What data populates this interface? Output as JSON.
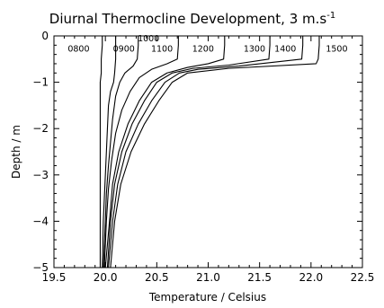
{
  "chart_data": {
    "type": "line",
    "title": "Diurnal Thermocline Development, 3 m.s",
    "title_superscript": "-1",
    "xlabel": "Temperature / Celsius",
    "ylabel": "Depth / m",
    "xlim": [
      19.5,
      22.5
    ],
    "ylim": [
      -5,
      0
    ],
    "xticks": [
      19.5,
      20.0,
      20.5,
      21.0,
      21.5,
      22.0,
      22.5
    ],
    "xtick_labels": [
      "19.5",
      "20.0",
      "20.5",
      "21.0",
      "21.5",
      "22.0",
      "22.5"
    ],
    "yticks": [
      0,
      -1,
      -2,
      -3,
      -4,
      -5
    ],
    "ytick_labels": [
      "0",
      "−1",
      "−2",
      "−3",
      "−4",
      "−5"
    ],
    "grid": false,
    "line_color": "#000000",
    "series": [
      {
        "name": "0800",
        "x": [
          19.97,
          19.97,
          19.96,
          19.96,
          19.95,
          19.95,
          19.95,
          19.95,
          19.95,
          19.95,
          19.95,
          19.95,
          19.95
        ],
        "y": [
          0,
          -0.2,
          -0.5,
          -0.8,
          -1.0,
          -1.2,
          -1.5,
          -2.0,
          -2.5,
          -3.0,
          -3.5,
          -4.0,
          -5.0
        ]
      },
      {
        "name": "0900",
        "x": [
          20.1,
          20.1,
          20.1,
          20.09,
          20.08,
          20.05,
          20.03,
          20.02,
          20.01,
          20.0,
          19.99,
          19.98,
          19.97
        ],
        "y": [
          0,
          -0.2,
          -0.5,
          -0.8,
          -1.0,
          -1.2,
          -1.5,
          -2.0,
          -2.5,
          -3.0,
          -3.5,
          -4.0,
          -5.0
        ]
      },
      {
        "name": "1000",
        "x": [
          20.32,
          20.32,
          20.31,
          20.27,
          20.19,
          20.14,
          20.1,
          20.07,
          20.05,
          20.03,
          20.01,
          20.0,
          19.98
        ],
        "y": [
          0,
          -0.2,
          -0.5,
          -0.65,
          -0.8,
          -1.0,
          -1.3,
          -1.8,
          -2.3,
          -2.8,
          -3.4,
          -4.0,
          -5.0
        ]
      },
      {
        "name": "1100",
        "x": [
          20.71,
          20.71,
          20.7,
          20.6,
          20.45,
          20.33,
          20.24,
          20.16,
          20.1,
          20.06,
          20.03,
          20.01,
          19.99
        ],
        "y": [
          0,
          -0.2,
          -0.5,
          -0.6,
          -0.72,
          -0.9,
          -1.2,
          -1.6,
          -2.1,
          -2.7,
          -3.3,
          -4.0,
          -5.0
        ]
      },
      {
        "name": "1200",
        "x": [
          21.16,
          21.16,
          21.15,
          21.0,
          20.8,
          20.6,
          20.45,
          20.33,
          20.22,
          20.13,
          20.07,
          20.04,
          20.0
        ],
        "y": [
          0,
          -0.2,
          -0.5,
          -0.6,
          -0.68,
          -0.8,
          -1.0,
          -1.4,
          -1.9,
          -2.5,
          -3.2,
          -4.0,
          -5.0
        ]
      },
      {
        "name": "1300",
        "x": [
          21.6,
          21.6,
          21.59,
          21.2,
          20.85,
          20.65,
          20.5,
          20.38,
          20.26,
          20.16,
          20.09,
          20.05,
          20.02
        ],
        "y": [
          0,
          -0.2,
          -0.5,
          -0.63,
          -0.7,
          -0.8,
          -1.0,
          -1.4,
          -1.9,
          -2.5,
          -3.2,
          -4.0,
          -5.0
        ]
      },
      {
        "name": "1400",
        "x": [
          21.92,
          21.92,
          21.91,
          21.3,
          20.9,
          20.72,
          20.58,
          20.45,
          20.32,
          20.2,
          20.12,
          20.07,
          20.03
        ],
        "y": [
          0,
          -0.2,
          -0.5,
          -0.65,
          -0.72,
          -0.8,
          -1.0,
          -1.4,
          -1.9,
          -2.5,
          -3.2,
          -4.0,
          -5.0
        ]
      },
      {
        "name": "1500",
        "x": [
          22.08,
          22.08,
          22.07,
          22.05,
          21.2,
          20.8,
          20.65,
          20.52,
          20.38,
          20.25,
          20.15,
          20.09,
          20.05
        ],
        "y": [
          0,
          -0.2,
          -0.5,
          -0.6,
          -0.7,
          -0.8,
          -1.0,
          -1.4,
          -1.9,
          -2.5,
          -3.2,
          -4.0,
          -5.0
        ]
      }
    ],
    "profile_labels": [
      {
        "text": "0800",
        "x": 19.74,
        "y": -0.34
      },
      {
        "text": "0900",
        "x": 20.18,
        "y": -0.34
      },
      {
        "text": "1000",
        "x": 20.42,
        "y": -0.12
      },
      {
        "text": "1100",
        "x": 20.55,
        "y": -0.34
      },
      {
        "text": "1200",
        "x": 20.95,
        "y": -0.34
      },
      {
        "text": "1300",
        "x": 21.45,
        "y": -0.34
      },
      {
        "text": "1400",
        "x": 21.75,
        "y": -0.34
      },
      {
        "text": "1500",
        "x": 22.25,
        "y": -0.34
      }
    ]
  }
}
